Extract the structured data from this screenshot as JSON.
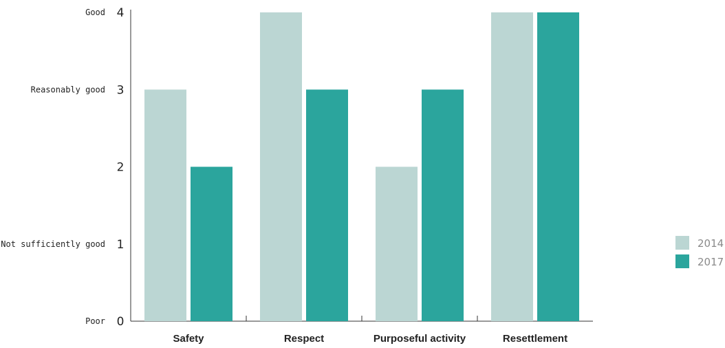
{
  "chart_data": {
    "type": "bar",
    "categories": [
      "Safety",
      "Respect",
      "Purposeful activity",
      "Resettlement"
    ],
    "series": [
      {
        "name": "2014",
        "values": [
          3,
          4,
          2,
          4
        ],
        "color": "#bbd6d3"
      },
      {
        "name": "2017",
        "values": [
          2,
          3,
          3,
          4
        ],
        "color": "#2ba59d"
      }
    ],
    "ylim": [
      0,
      4
    ],
    "yticks": [
      0,
      1,
      2,
      3,
      4
    ],
    "rating_labels": [
      "Poor",
      "Not sufficiently good",
      "",
      "Reasonably good",
      "Good"
    ],
    "title": "",
    "xlabel": "",
    "ylabel": "",
    "grid": false,
    "legend_position": "right"
  }
}
